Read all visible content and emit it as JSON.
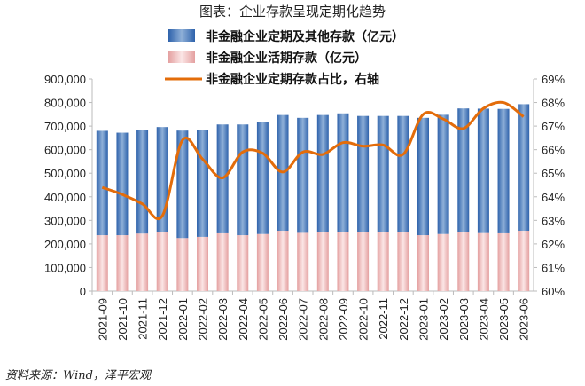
{
  "title": "图表：企业存款呈现定期化趋势",
  "source": "资料来源：Wind，泽平宏观",
  "colors": {
    "term": "#3d72b8",
    "demand": "#f2c4c4",
    "ratio": "#e36c0a"
  },
  "chart_data": {
    "type": "bar",
    "stacked": true,
    "categories": [
      "2021-09",
      "2021-10",
      "2021-11",
      "2021-12",
      "2022-01",
      "2022-02",
      "2022-03",
      "2022-04",
      "2022-05",
      "2022-06",
      "2022-07",
      "2022-08",
      "2022-09",
      "2022-10",
      "2022-11",
      "2022-12",
      "2023-01",
      "2023-02",
      "2023-03",
      "2023-04",
      "2023-05",
      "2023-06"
    ],
    "series": [
      {
        "name": "非金融企业活期存款（亿元）",
        "type": "bar",
        "axis": "left",
        "values": [
          237000,
          237000,
          244000,
          249000,
          225000,
          230000,
          245000,
          237000,
          242000,
          256000,
          247000,
          252000,
          251000,
          250000,
          250000,
          251000,
          237000,
          242000,
          251000,
          246000,
          245000,
          256000
        ]
      },
      {
        "name": "非金融企业定期及其他存款（亿元）",
        "type": "bar",
        "axis": "left",
        "values": [
          443000,
          435000,
          439000,
          447000,
          456000,
          453000,
          462000,
          470000,
          476000,
          491000,
          488000,
          495000,
          503000,
          493000,
          493000,
          492000,
          498000,
          506000,
          524000,
          528000,
          528000,
          537000
        ]
      },
      {
        "name": "非金融企业定期存款占比，右轴",
        "type": "line",
        "axis": "right",
        "values": [
          64.4,
          64.1,
          63.7,
          63.2,
          66.4,
          65.6,
          64.8,
          65.9,
          65.85,
          65.05,
          65.9,
          65.8,
          66.3,
          66.15,
          66.2,
          65.8,
          67.5,
          67.3,
          66.9,
          67.75,
          68.0,
          67.4
        ]
      }
    ],
    "legend_order": [
      1,
      0,
      2
    ],
    "left_axis": {
      "ylim": [
        0,
        900000
      ],
      "ticks": [
        "0",
        "100,000",
        "200,000",
        "300,000",
        "400,000",
        "500,000",
        "600,000",
        "700,000",
        "800,000",
        "900,000"
      ]
    },
    "right_axis": {
      "ylim": [
        60,
        69
      ],
      "ticks": [
        "60%",
        "61%",
        "62%",
        "63%",
        "64%",
        "65%",
        "66%",
        "67%",
        "68%",
        "69%"
      ]
    },
    "legend_placement": "top-center",
    "grid": false
  }
}
